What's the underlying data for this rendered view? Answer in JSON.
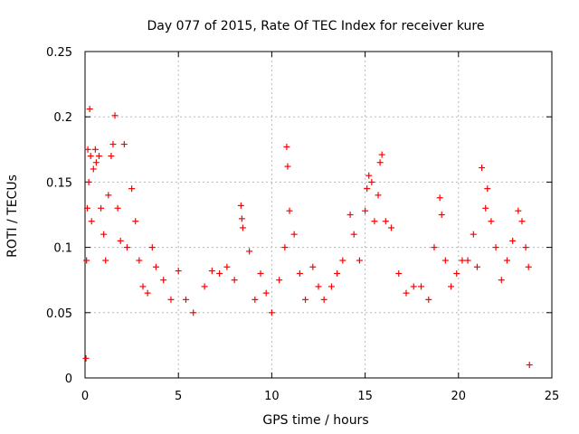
{
  "chart_data": {
    "type": "scatter",
    "title": "Day 077 of 2015, Rate Of TEC Index for receiver kure",
    "xlabel": "GPS time / hours",
    "ylabel": "ROTI / TECUs",
    "xlim": [
      0,
      25
    ],
    "ylim": [
      0,
      0.25
    ],
    "xticks": [
      0,
      5,
      10,
      15,
      20,
      25
    ],
    "xtick_labels": [
      "0",
      "5",
      "10",
      "15",
      "20",
      "25"
    ],
    "yticks": [
      0,
      0.05,
      0.1,
      0.15,
      0.2,
      0.25
    ],
    "ytick_labels": [
      "0",
      "0.05",
      "0.1",
      "0.15",
      "0.2",
      "0.25"
    ],
    "grid": true,
    "marker": "+",
    "series": [
      {
        "name": "ROTI",
        "color": "#ff0000",
        "points": [
          [
            0.05,
            0.015
          ],
          [
            0.08,
            0.09
          ],
          [
            0.12,
            0.13
          ],
          [
            0.15,
            0.175
          ],
          [
            0.2,
            0.15
          ],
          [
            0.25,
            0.206
          ],
          [
            0.3,
            0.17
          ],
          [
            0.35,
            0.12
          ],
          [
            0.45,
            0.16
          ],
          [
            0.55,
            0.175
          ],
          [
            0.6,
            0.165
          ],
          [
            0.75,
            0.17
          ],
          [
            0.85,
            0.13
          ],
          [
            1.0,
            0.11
          ],
          [
            1.1,
            0.09
          ],
          [
            1.25,
            0.14
          ],
          [
            1.4,
            0.17
          ],
          [
            1.5,
            0.179
          ],
          [
            1.6,
            0.201
          ],
          [
            1.75,
            0.13
          ],
          [
            1.9,
            0.105
          ],
          [
            2.1,
            0.179
          ],
          [
            2.25,
            0.1
          ],
          [
            2.5,
            0.145
          ],
          [
            2.7,
            0.12
          ],
          [
            2.9,
            0.09
          ],
          [
            3.1,
            0.07
          ],
          [
            3.35,
            0.065
          ],
          [
            3.6,
            0.1
          ],
          [
            3.8,
            0.085
          ],
          [
            4.2,
            0.075
          ],
          [
            4.6,
            0.06
          ],
          [
            5.0,
            0.082
          ],
          [
            5.4,
            0.06
          ],
          [
            5.8,
            0.05
          ],
          [
            6.4,
            0.07
          ],
          [
            6.8,
            0.082
          ],
          [
            7.2,
            0.08
          ],
          [
            7.6,
            0.085
          ],
          [
            8.0,
            0.075
          ],
          [
            8.35,
            0.132
          ],
          [
            8.4,
            0.122
          ],
          [
            8.45,
            0.115
          ],
          [
            8.8,
            0.097
          ],
          [
            9.1,
            0.06
          ],
          [
            9.4,
            0.08
          ],
          [
            9.7,
            0.065
          ],
          [
            10.0,
            0.05
          ],
          [
            10.4,
            0.075
          ],
          [
            10.7,
            0.1
          ],
          [
            10.8,
            0.177
          ],
          [
            10.85,
            0.162
          ],
          [
            10.95,
            0.128
          ],
          [
            11.2,
            0.11
          ],
          [
            11.5,
            0.08
          ],
          [
            11.8,
            0.06
          ],
          [
            12.2,
            0.085
          ],
          [
            12.5,
            0.07
          ],
          [
            12.8,
            0.06
          ],
          [
            13.2,
            0.07
          ],
          [
            13.5,
            0.08
          ],
          [
            13.8,
            0.09
          ],
          [
            14.2,
            0.125
          ],
          [
            14.4,
            0.11
          ],
          [
            14.7,
            0.09
          ],
          [
            15.0,
            0.128
          ],
          [
            15.1,
            0.145
          ],
          [
            15.2,
            0.155
          ],
          [
            15.35,
            0.15
          ],
          [
            15.5,
            0.12
          ],
          [
            15.7,
            0.14
          ],
          [
            15.8,
            0.165
          ],
          [
            15.9,
            0.171
          ],
          [
            16.1,
            0.12
          ],
          [
            16.4,
            0.115
          ],
          [
            16.8,
            0.08
          ],
          [
            17.2,
            0.065
          ],
          [
            17.6,
            0.07
          ],
          [
            18.0,
            0.07
          ],
          [
            18.4,
            0.06
          ],
          [
            18.7,
            0.1
          ],
          [
            19.0,
            0.138
          ],
          [
            19.1,
            0.125
          ],
          [
            19.3,
            0.09
          ],
          [
            19.6,
            0.07
          ],
          [
            19.9,
            0.08
          ],
          [
            20.2,
            0.09
          ],
          [
            20.5,
            0.09
          ],
          [
            20.8,
            0.11
          ],
          [
            21.0,
            0.085
          ],
          [
            21.25,
            0.161
          ],
          [
            21.45,
            0.13
          ],
          [
            21.55,
            0.145
          ],
          [
            21.75,
            0.12
          ],
          [
            22.0,
            0.1
          ],
          [
            22.3,
            0.075
          ],
          [
            22.6,
            0.09
          ],
          [
            22.9,
            0.105
          ],
          [
            23.2,
            0.128
          ],
          [
            23.4,
            0.12
          ],
          [
            23.6,
            0.1
          ],
          [
            23.75,
            0.085
          ],
          [
            23.8,
            0.01
          ]
        ]
      }
    ]
  }
}
